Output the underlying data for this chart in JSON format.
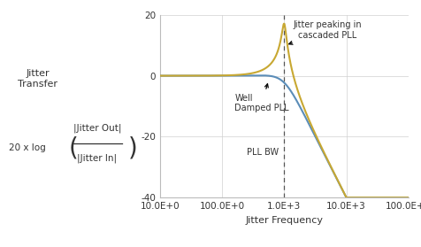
{
  "xlabel": "Jitter Frequency",
  "xlim": [
    10,
    100000
  ],
  "ylim": [
    -40,
    20
  ],
  "yticks": [
    -40,
    -20,
    0,
    20
  ],
  "xtick_labels": [
    "10.0E+0",
    "100.0E+0",
    "1.0E+3",
    "10.0E+3",
    "100.0E+3"
  ],
  "xtick_values": [
    10,
    100,
    1000,
    10000,
    100000
  ],
  "pll_bw": 1000,
  "label_pll_bw": "PLL BW",
  "annotation_well_damped": "Well\nDamped PLL",
  "annotation_peaking": "Jitter peaking in\ncascaded PLL",
  "color_well_damped": "#5b8db8",
  "color_peaking": "#c8a832",
  "color_dashed_line": "#555555",
  "grid_color": "#d0d0d0",
  "background_color": "#ffffff",
  "text_color": "#333333",
  "ylabel_title": "Jitter\nTransfer",
  "ylabel_formula": "20 x log",
  "ylabel_num": "|Jitter Out|",
  "ylabel_den": "|Jitter In|"
}
